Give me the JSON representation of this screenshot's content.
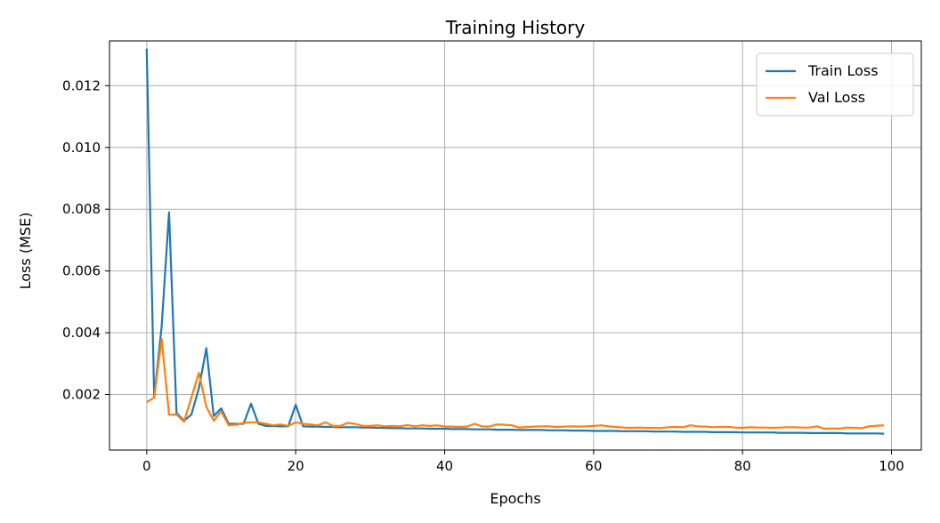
{
  "chart_data": {
    "type": "line",
    "title": "Training History",
    "xlabel": "Epochs",
    "ylabel": "Loss (MSE)",
    "xlim": [
      -5,
      104
    ],
    "ylim": [
      0.0002,
      0.01345
    ],
    "xticks": [
      0,
      20,
      40,
      60,
      80,
      100
    ],
    "yticks": [
      0.002,
      0.004,
      0.006,
      0.008,
      0.01,
      0.012
    ],
    "ytick_labels": [
      "0.002",
      "0.004",
      "0.006",
      "0.008",
      "0.010",
      "0.012"
    ],
    "grid": true,
    "legend_position": "top-right",
    "series": [
      {
        "name": "Train Loss",
        "color": "#1f77b4",
        "x": [
          0,
          1,
          2,
          3,
          4,
          5,
          6,
          7,
          8,
          9,
          10,
          11,
          12,
          13,
          14,
          15,
          16,
          17,
          18,
          19,
          20,
          21,
          22,
          23,
          24,
          25,
          26,
          27,
          28,
          29,
          30,
          31,
          32,
          33,
          34,
          35,
          36,
          37,
          38,
          39,
          40,
          41,
          42,
          43,
          44,
          45,
          46,
          47,
          48,
          49,
          50,
          51,
          52,
          53,
          54,
          55,
          56,
          57,
          58,
          59,
          60,
          61,
          62,
          63,
          64,
          65,
          66,
          67,
          68,
          69,
          70,
          71,
          72,
          73,
          74,
          75,
          76,
          77,
          78,
          79,
          80,
          81,
          82,
          83,
          84,
          85,
          86,
          87,
          88,
          89,
          90,
          91,
          92,
          93,
          94,
          95,
          96,
          97,
          98,
          99
        ],
        "values": [
          0.0132,
          0.0019,
          0.0042,
          0.0079,
          0.0014,
          0.00115,
          0.00135,
          0.0022,
          0.0035,
          0.0013,
          0.00155,
          0.00105,
          0.00105,
          0.00105,
          0.0017,
          0.00105,
          0.00098,
          0.00098,
          0.00097,
          0.00097,
          0.00167,
          0.00097,
          0.00096,
          0.00096,
          0.00095,
          0.00095,
          0.00094,
          0.00094,
          0.00094,
          0.00093,
          0.00093,
          0.00092,
          0.00092,
          0.00091,
          0.00091,
          0.0009,
          0.0009,
          0.0009,
          0.00089,
          0.00089,
          0.00089,
          0.00088,
          0.00088,
          0.00088,
          0.00087,
          0.00087,
          0.00087,
          0.00086,
          0.00086,
          0.00086,
          0.00085,
          0.00085,
          0.00085,
          0.00085,
          0.00084,
          0.00084,
          0.00084,
          0.00083,
          0.00083,
          0.00083,
          0.00082,
          0.00082,
          0.00082,
          0.00082,
          0.00081,
          0.00081,
          0.00081,
          0.00081,
          0.0008,
          0.0008,
          0.0008,
          0.0008,
          0.00079,
          0.00079,
          0.00079,
          0.00079,
          0.00078,
          0.00078,
          0.00078,
          0.00078,
          0.00077,
          0.00077,
          0.00077,
          0.00077,
          0.00077,
          0.00076,
          0.00076,
          0.00076,
          0.00076,
          0.00075,
          0.00075,
          0.00075,
          0.00075,
          0.00075,
          0.00074,
          0.00074,
          0.00074,
          0.00074,
          0.00074,
          0.00073
        ]
      },
      {
        "name": "Val Loss",
        "color": "#ff7f0e",
        "x": [
          0,
          1,
          2,
          3,
          4,
          5,
          6,
          7,
          8,
          9,
          10,
          11,
          12,
          13,
          14,
          15,
          16,
          17,
          18,
          19,
          20,
          21,
          22,
          23,
          24,
          25,
          26,
          27,
          28,
          29,
          30,
          31,
          32,
          33,
          34,
          35,
          36,
          37,
          38,
          39,
          40,
          41,
          42,
          43,
          44,
          45,
          46,
          47,
          48,
          49,
          50,
          51,
          52,
          53,
          54,
          55,
          56,
          57,
          58,
          59,
          60,
          61,
          62,
          63,
          64,
          65,
          66,
          67,
          68,
          69,
          70,
          71,
          72,
          73,
          74,
          75,
          76,
          77,
          78,
          79,
          80,
          81,
          82,
          83,
          84,
          85,
          86,
          87,
          88,
          89,
          90,
          91,
          92,
          93,
          94,
          95,
          96,
          97,
          98,
          99
        ],
        "values": [
          0.00175,
          0.0019,
          0.0038,
          0.00135,
          0.00135,
          0.00112,
          0.0019,
          0.0027,
          0.0016,
          0.00115,
          0.00145,
          0.001,
          0.00102,
          0.00108,
          0.0011,
          0.0011,
          0.00105,
          0.001,
          0.00103,
          0.00098,
          0.0011,
          0.00105,
          0.00103,
          0.001,
          0.0011,
          0.00098,
          0.00098,
          0.00108,
          0.00105,
          0.00098,
          0.00098,
          0.001,
          0.00097,
          0.00098,
          0.00097,
          0.00101,
          0.00097,
          0.001,
          0.00098,
          0.001,
          0.00096,
          0.00096,
          0.00095,
          0.00096,
          0.00105,
          0.00097,
          0.00096,
          0.00103,
          0.00102,
          0.001,
          0.00093,
          0.00095,
          0.00096,
          0.00097,
          0.00097,
          0.00095,
          0.00096,
          0.00097,
          0.00096,
          0.00097,
          0.00098,
          0.001,
          0.00097,
          0.00095,
          0.00093,
          0.00092,
          0.00093,
          0.00092,
          0.00092,
          0.00091,
          0.00094,
          0.00095,
          0.00094,
          0.001,
          0.00097,
          0.00096,
          0.00094,
          0.00095,
          0.00095,
          0.00093,
          0.00092,
          0.00094,
          0.00093,
          0.00093,
          0.00092,
          0.00093,
          0.00094,
          0.00094,
          0.00093,
          0.00093,
          0.00097,
          0.00089,
          0.0009,
          0.00089,
          0.00093,
          0.00092,
          0.00091,
          0.00097,
          0.00099,
          0.001
        ]
      }
    ]
  }
}
